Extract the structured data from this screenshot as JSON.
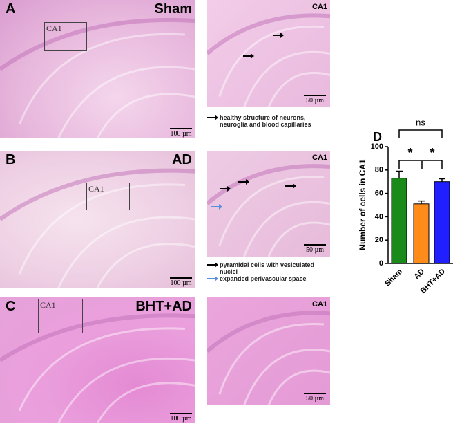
{
  "panels": [
    {
      "letter": "A",
      "condition": "Sham",
      "box_label": "CA1",
      "scale_left": "100 µm",
      "inset_label": "CA1",
      "scale_right": "50 µm",
      "legend": [
        "healthy structure of neurons, neuroglia and blood capillaries"
      ]
    },
    {
      "letter": "B",
      "condition": "AD",
      "box_label": "CA1",
      "scale_left": "100 µm",
      "inset_label": "CA1",
      "scale_right": "50 µm",
      "legend": [
        "pyramidal cells with vesiculated nuclei",
        "expanded perivascular space"
      ]
    },
    {
      "letter": "C",
      "condition": "BHT+AD",
      "box_label": "CA1",
      "scale_left": "100 µm",
      "inset_label": "CA1",
      "scale_right": "50 µm",
      "legend": []
    }
  ],
  "chart_data": {
    "type": "bar",
    "label": "D",
    "y_label": "Number of cells in CA1",
    "categories": [
      "Sham",
      "AD",
      "BHT+AD"
    ],
    "values": [
      73,
      51,
      70
    ],
    "errors": [
      6,
      2.5,
      2.5
    ],
    "colors": [
      "#1a8a1a",
      "#ff8c1a",
      "#1f1fff"
    ],
    "ylim": [
      0,
      100
    ],
    "yticks": [
      0,
      20,
      40,
      60,
      80,
      100
    ],
    "annotations": [
      "ns",
      "*",
      "*"
    ]
  }
}
